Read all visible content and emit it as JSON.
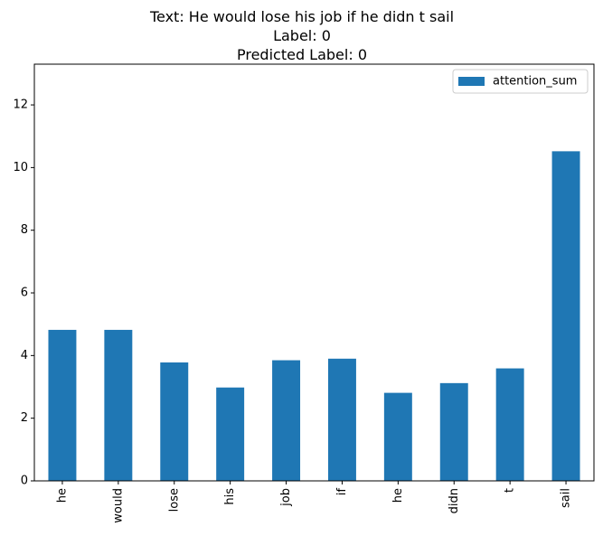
{
  "chart_data": {
    "type": "bar",
    "title_lines": [
      "Text: He would lose his job if he didn t sail",
      "Label: 0",
      "Predicted Label: 0"
    ],
    "categories": [
      "he",
      "would",
      "lose",
      "his",
      "job",
      "if",
      "he",
      "didn",
      "t",
      "sail"
    ],
    "series": [
      {
        "name": "attention_sum",
        "color": "#1f77b4",
        "values": [
          4.82,
          4.82,
          3.78,
          2.98,
          3.85,
          3.9,
          2.81,
          3.12,
          3.59,
          10.52
        ]
      }
    ],
    "xlabel": "",
    "ylabel": "",
    "ylim": [
      0,
      13.3
    ],
    "yticks": [
      0,
      2,
      4,
      6,
      8,
      10,
      12
    ],
    "grid": false,
    "legend_position": "top-right",
    "tick_label_rotation": "vertical"
  }
}
